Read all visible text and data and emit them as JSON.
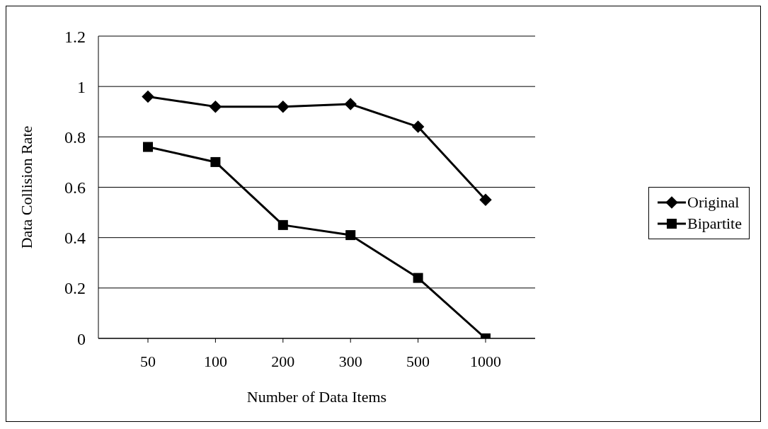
{
  "chart_data": {
    "type": "line",
    "xlabel": "Number of Data Items",
    "ylabel": "Data Collision Rate",
    "categories": [
      "50",
      "100",
      "200",
      "300",
      "500",
      "1000"
    ],
    "series": [
      {
        "name": "Original",
        "color": "#000000",
        "marker": "diamond",
        "values": [
          0.96,
          0.92,
          0.92,
          0.93,
          0.84,
          0.55
        ]
      },
      {
        "name": "Bipartite",
        "color": "#000000",
        "marker": "square",
        "values": [
          0.76,
          0.7,
          0.45,
          0.41,
          0.24,
          0
        ]
      }
    ],
    "ylim": [
      0,
      1.2
    ],
    "yticks": [
      0,
      0.2,
      0.4,
      0.6,
      0.8,
      1,
      1.2
    ],
    "grid": "y",
    "legend": "right",
    "line_style": "solid"
  }
}
